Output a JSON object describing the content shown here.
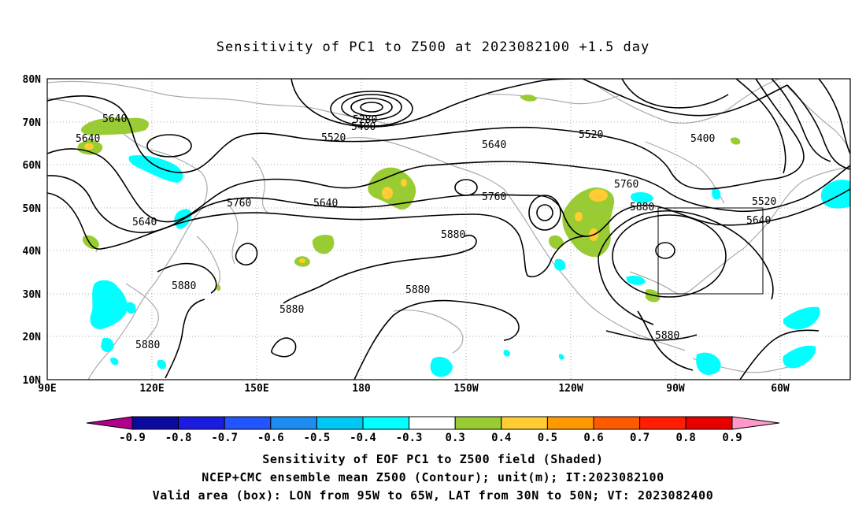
{
  "title": "Sensitivity of PC1 to Z500 at 2023082100 +1.5 day",
  "lat_labels": [
    "80N",
    "70N",
    "60N",
    "50N",
    "40N",
    "30N",
    "20N",
    "10N"
  ],
  "lon_labels": [
    "90E",
    "120E",
    "150E",
    "180",
    "150W",
    "120W",
    "90W",
    "60W"
  ],
  "contour_labels": [
    "5640",
    "5640",
    "5280",
    "5400",
    "5520",
    "5640",
    "5520",
    "5400",
    "5640",
    "5760",
    "5640",
    "5760",
    "5760",
    "5880",
    "5520",
    "5640",
    "5880",
    "5880",
    "5880",
    "5880",
    "5880",
    "5880"
  ],
  "colorbar": {
    "ticks": [
      "-0.9",
      "-0.8",
      "-0.7",
      "-0.6",
      "-0.5",
      "-0.4",
      "-0.3",
      "0.3",
      "0.4",
      "0.5",
      "0.6",
      "0.7",
      "0.8",
      "0.9"
    ],
    "colors": [
      "#b0008a",
      "#0a0a9e",
      "#1c1ce0",
      "#2255ff",
      "#1e8cf0",
      "#00c8f5",
      "#00ffff",
      "#ffffff",
      "#99cc33",
      "#ffcc33",
      "#ff9900",
      "#ff5a00",
      "#ff1e00",
      "#e60000",
      "#ff99cc"
    ]
  },
  "footer": {
    "line1": "Sensitivity of EOF PC1 to Z500 field (Shaded)",
    "line2": "NCEP+CMC ensemble mean Z500 (Contour); unit(m); IT:2023082100",
    "line3": "Valid area (box): LON from 95W to 65W, LAT from 30N to 50N; VT: 2023082400"
  },
  "colors": {
    "coast": "#aaaaaa",
    "contour": "#000000",
    "grid": "#aaaaaa",
    "positive": "#99cc33",
    "positive_strong": "#ffcc33",
    "negative": "#00ffff"
  }
}
